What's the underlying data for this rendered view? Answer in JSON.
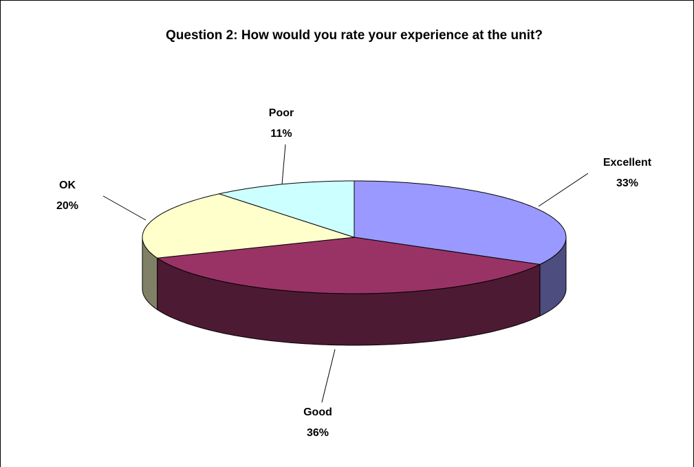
{
  "chart_data": {
    "type": "pie",
    "title": "Question 2: How would you rate your experience at the unit?",
    "categories": [
      "Excellent",
      "Good",
      "OK",
      "Poor"
    ],
    "values": [
      33,
      36,
      20,
      11
    ],
    "value_labels": [
      "33%",
      "36%",
      "20%",
      "11%"
    ],
    "colors": [
      "#9999ff",
      "#993366",
      "#ffffcc",
      "#ccffff"
    ]
  }
}
